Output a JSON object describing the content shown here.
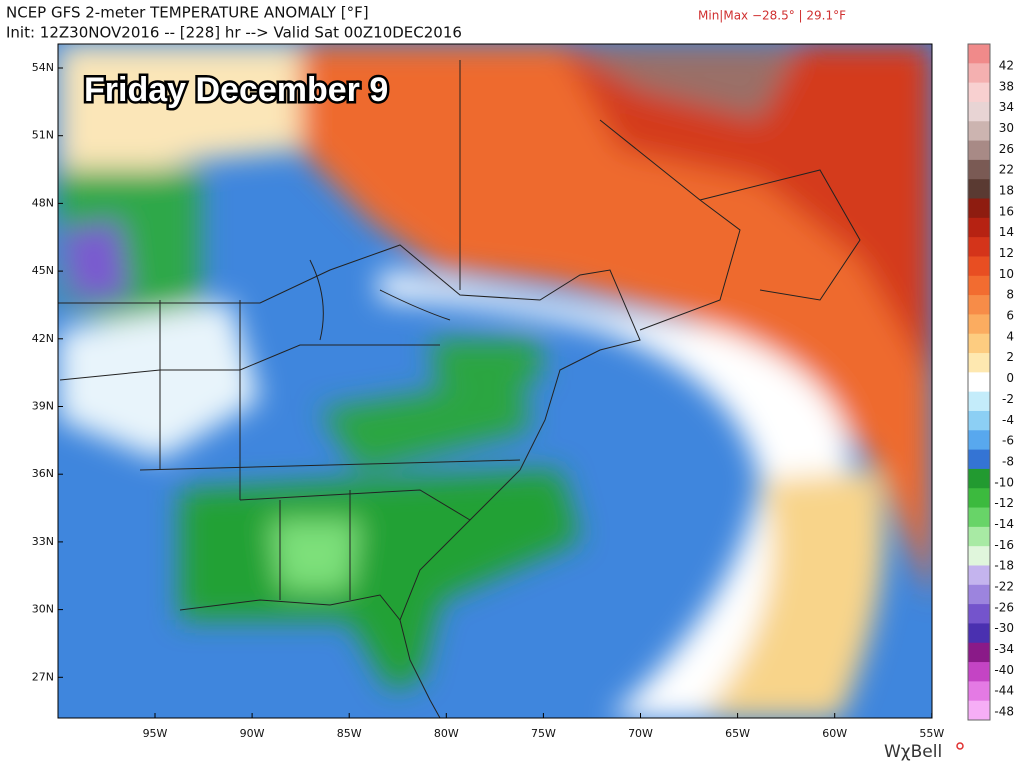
{
  "header": {
    "title": "NCEP GFS 2-meter TEMPERATURE ANOMALY [°F]",
    "init": "Init: 12Z30NOV2016 -- [228] hr --> Valid Sat 00Z10DEC2016",
    "minmax": "Min|Max −28.5° | 29.1°F"
  },
  "overlay": "Friday December 9",
  "map": {
    "lat_labels": [
      "54N",
      "51N",
      "48N",
      "45N",
      "42N",
      "39N",
      "36N",
      "33N",
      "30N",
      "27N"
    ],
    "lon_labels": [
      "95W",
      "90W",
      "85W",
      "80W",
      "75W",
      "70W",
      "65W",
      "60W",
      "55W"
    ]
  },
  "colorbar": {
    "labels": [
      42,
      38,
      34,
      30,
      26,
      22,
      18,
      16,
      14,
      12,
      10,
      8,
      6,
      4,
      2,
      0,
      -2,
      -4,
      -6,
      -8,
      -10,
      -12,
      -14,
      -16,
      -18,
      -22,
      -26,
      -30,
      -34,
      -40,
      -44,
      -48
    ]
  },
  "brand": "WχBell"
}
